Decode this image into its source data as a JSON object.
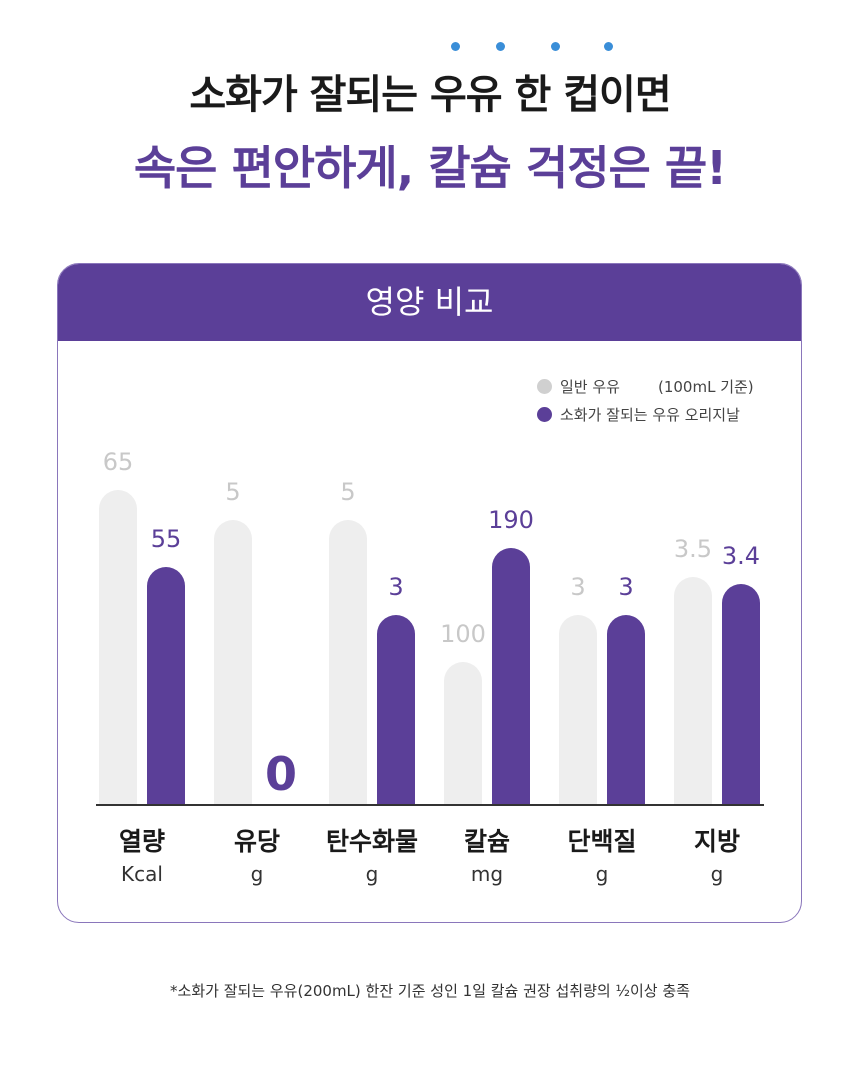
{
  "title_line1": "소화가 잘되는 우유 한 컵이면",
  "title_line2": "속은 편안하게, 칼슘 걱정은 끝!",
  "colors": {
    "accent": "#5b3f98",
    "gray_bar": "#eeeeee",
    "gray_label": "#c8c8c8",
    "dot": "#3a8ed8"
  },
  "chart_data": {
    "type": "bar",
    "title": "영양 비교",
    "legend": [
      {
        "name": "일반 우유",
        "color": "#d0d0d0"
      },
      {
        "name": "소화가 잘되는 우유 오리지날",
        "color": "#5b3f98"
      }
    ],
    "basis_note": "(100mL 기준)",
    "legend_position": "top-right",
    "categories": [
      "열량",
      "유당",
      "탄수화물",
      "칼슘",
      "단백질",
      "지방"
    ],
    "units": [
      "Kcal",
      "g",
      "g",
      "mg",
      "g",
      "g"
    ],
    "series": [
      {
        "name": "일반 우유",
        "values": [
          65,
          5,
          5,
          100,
          3,
          3.5
        ],
        "labels": [
          "65",
          "5",
          "5",
          "100",
          "3",
          "3.5"
        ]
      },
      {
        "name": "소화가 잘되는 우유 오리지날",
        "values": [
          55,
          0,
          3,
          190,
          3,
          3.4
        ],
        "labels": [
          "55",
          "0",
          "3",
          "190",
          "3",
          "3.4"
        ]
      }
    ]
  },
  "footnote": "*소화가 잘되는 우유(200mL) 한잔 기준 성인 1일 칼슘 권장 섭취량의 ½이상 충족"
}
